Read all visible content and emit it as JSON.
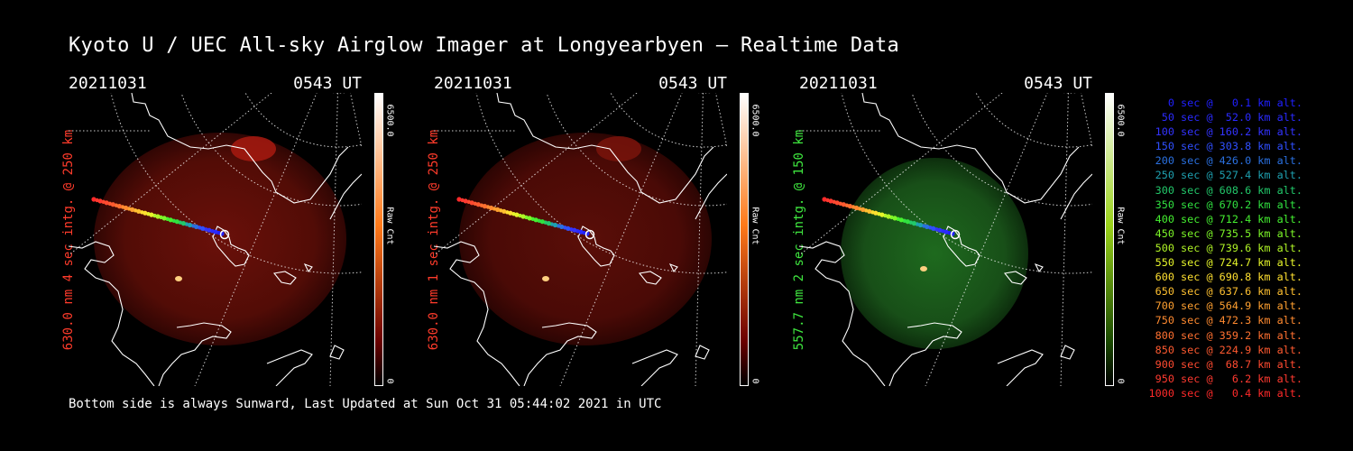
{
  "title": "Kyoto U / UEC All-sky Airglow Imager at Longyearbyen — Realtime Data",
  "footer": "Bottom side is always Sunward, Last Updated at Sun Oct 31 05:44:02 2021 in UTC",
  "panels": [
    {
      "date": "20211031",
      "time": "0543 UT",
      "side_label": "630.0 nm 4 sec intg. @ 250 km",
      "side_color": "#ff3b2b",
      "cbar_max": "6500.0",
      "cbar_min": "0",
      "cbar_unit": "Raw Cnt",
      "tint": "red",
      "cbar_top": "#ffffff",
      "cbar_mid": "#ff7a1a",
      "cbar_low": "#6a0000"
    },
    {
      "date": "20211031",
      "time": "0543 UT",
      "side_label": "630.0 nm 1 sec intg. @ 250 km",
      "side_color": "#ff3b2b",
      "cbar_max": "6500.0",
      "cbar_min": "0",
      "cbar_unit": "Raw Cnt",
      "tint": "red-dim",
      "cbar_top": "#ffffff",
      "cbar_mid": "#ff7a1a",
      "cbar_low": "#6a0000"
    },
    {
      "date": "20211031",
      "time": "0543 UT",
      "side_label": "557.7 nm 2 sec intg. @ 150 km",
      "side_color": "#3fe63f",
      "cbar_max": "6500.0",
      "cbar_min": "0",
      "cbar_unit": "Raw Cnt",
      "tint": "green",
      "cbar_top": "#ffffff",
      "cbar_mid": "#9ad21a",
      "cbar_low": "#1a4a00"
    }
  ],
  "legend": [
    {
      "text": "0 sec @   0.1 km alt.",
      "color": "#2020ff"
    },
    {
      "text": "50 sec @  52.0 km alt.",
      "color": "#2a2aff"
    },
    {
      "text": "100 sec @ 160.2 km alt.",
      "color": "#3333ff"
    },
    {
      "text": "150 sec @ 303.8 km alt.",
      "color": "#2f4fff"
    },
    {
      "text": "200 sec @ 426.0 km alt.",
      "color": "#2a70e0"
    },
    {
      "text": "250 sec @ 527.4 km alt.",
      "color": "#1ea0b0"
    },
    {
      "text": "300 sec @ 608.6 km alt.",
      "color": "#22c86a"
    },
    {
      "text": "350 sec @ 670.2 km alt.",
      "color": "#30e040"
    },
    {
      "text": "400 sec @ 712.4 km alt.",
      "color": "#45f030"
    },
    {
      "text": "450 sec @ 735.5 km alt.",
      "color": "#7cf528"
    },
    {
      "text": "500 sec @ 739.6 km alt.",
      "color": "#b0f526"
    },
    {
      "text": "550 sec @ 724.7 km alt.",
      "color": "#e6f52a"
    },
    {
      "text": "600 sec @ 690.8 km alt.",
      "color": "#ffe030"
    },
    {
      "text": "650 sec @ 637.6 km alt.",
      "color": "#ffc030"
    },
    {
      "text": "700 sec @ 564.9 km alt.",
      "color": "#ffa030"
    },
    {
      "text": "750 sec @ 472.3 km alt.",
      "color": "#ff8a30"
    },
    {
      "text": "800 sec @ 359.2 km alt.",
      "color": "#ff7030"
    },
    {
      "text": "850 sec @ 224.9 km alt.",
      "color": "#ff5a30"
    },
    {
      "text": "900 sec @  68.7 km alt.",
      "color": "#ff4a30"
    },
    {
      "text": "950 sec @   6.2 km alt.",
      "color": "#ff3a30"
    },
    {
      "text": "1000 sec @   0.4 km alt.",
      "color": "#ff2a2a"
    }
  ]
}
